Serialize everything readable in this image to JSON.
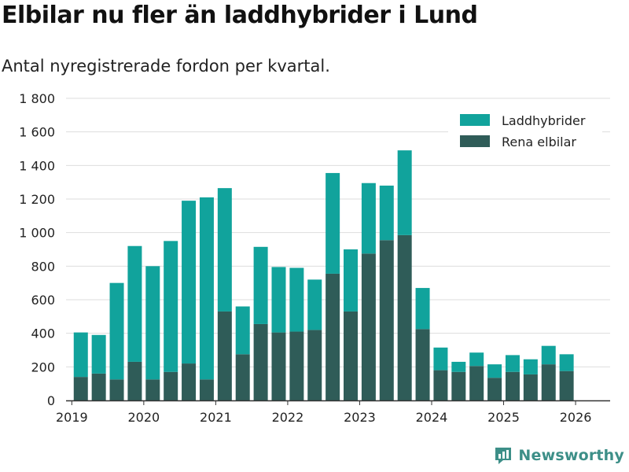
{
  "header": {
    "title": "Elbilar nu fler än laddhybrider i Lund",
    "subtitle": "Antal nyregistrerade fordon per kvartal."
  },
  "branding": {
    "name": "Newsworthy",
    "icon": "newsworthy-logo-icon"
  },
  "colors": {
    "laddhybrider": "#11a39c",
    "elbilar": "#2f5c58",
    "grid": "#dddddd",
    "axis": "#333333"
  },
  "chart_data": {
    "type": "bar",
    "stacked": true,
    "title": "Elbilar nu fler än laddhybrider i Lund",
    "subtitle": "Antal nyregistrerade fordon per kvartal.",
    "xlabel": "",
    "ylabel": "",
    "ylim": [
      0,
      1800
    ],
    "yticks": [
      0,
      200,
      400,
      600,
      800,
      1000,
      1200,
      1400,
      1600,
      1800
    ],
    "ytick_labels": [
      "0",
      "200",
      "400",
      "600",
      "800",
      "1 000",
      "1 200",
      "1 400",
      "1 600",
      "1 800"
    ],
    "xticks": [
      2019,
      2020,
      2021,
      2022,
      2023,
      2024,
      2025,
      2026
    ],
    "xlim": [
      2018.92,
      2026.48
    ],
    "grid": true,
    "legend_position": "top-right",
    "categories": [
      "2019 Q2",
      "2019 Q3",
      "2019 Q4",
      "2020 Q1",
      "2020 Q2",
      "2020 Q3",
      "2020 Q4",
      "2021 Q1",
      "2021 Q2",
      "2021 Q3",
      "2021 Q4",
      "2022 Q1",
      "2022 Q2",
      "2022 Q3",
      "2022 Q4",
      "2023 Q1",
      "2023 Q2",
      "2023 Q3",
      "2023 Q4",
      "2024 Q1",
      "2024 Q2",
      "2024 Q3",
      "2024 Q4",
      "2025 Q1",
      "2025 Q2",
      "2025 Q3",
      "2025 Q4",
      "2026 Q1"
    ],
    "x": [
      2019.125,
      2019.375,
      2019.625,
      2019.875,
      2020.125,
      2020.375,
      2020.625,
      2020.875,
      2021.125,
      2021.375,
      2021.625,
      2021.875,
      2022.125,
      2022.375,
      2022.625,
      2022.875,
      2023.125,
      2023.375,
      2023.625,
      2023.875,
      2024.125,
      2024.375,
      2024.625,
      2024.875,
      2025.125,
      2025.375,
      2025.625,
      2025.875
    ],
    "series": [
      {
        "name": "Rena elbilar",
        "values": [
          140,
          160,
          125,
          230,
          125,
          170,
          220,
          125,
          530,
          275,
          455,
          405,
          410,
          420,
          755,
          530,
          875,
          955,
          985,
          425,
          180,
          170,
          205,
          135,
          170,
          155,
          215,
          175
        ]
      },
      {
        "name": "Laddhybrider",
        "values": [
          265,
          230,
          575,
          690,
          675,
          780,
          970,
          1085,
          735,
          285,
          460,
          390,
          380,
          300,
          600,
          370,
          420,
          325,
          505,
          245,
          135,
          60,
          80,
          80,
          100,
          90,
          110,
          100
        ]
      }
    ],
    "legend": [
      "Laddhybrider",
      "Rena elbilar"
    ]
  }
}
